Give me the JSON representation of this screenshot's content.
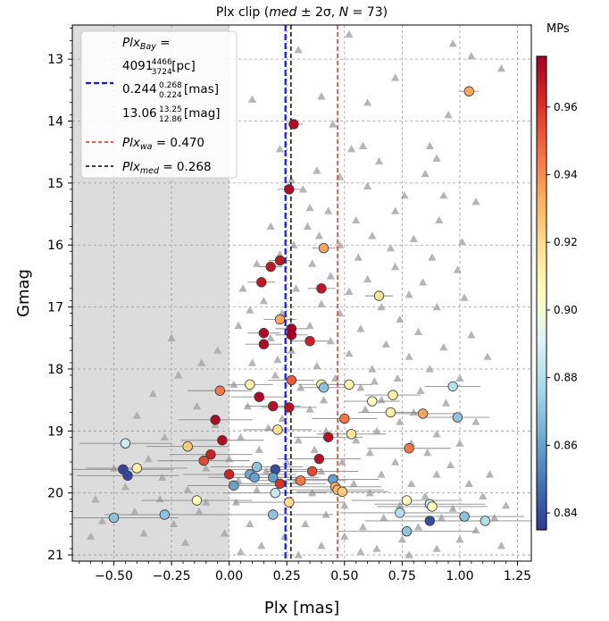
{
  "chart_data": {
    "type": "scatter",
    "title": "Plx clip (med ± 2σ, N = 73)",
    "title_parts": [
      "Plx clip (",
      "med",
      " ± 2σ, ",
      "N",
      " = 73)"
    ],
    "xlabel": "Plx [mas]",
    "ylabel": "Gmag",
    "xlim": [
      -0.68,
      1.31
    ],
    "ylim": [
      21.1,
      12.45
    ],
    "y_inverted": true,
    "xticks": [
      -0.5,
      -0.25,
      0.0,
      0.25,
      0.5,
      0.75,
      1.0,
      1.25
    ],
    "xtick_labels": [
      "−0.50",
      "−0.25",
      "0.00",
      "0.25",
      "0.50",
      "0.75",
      "1.00",
      "1.25"
    ],
    "yticks": [
      13,
      14,
      15,
      16,
      17,
      18,
      19,
      20,
      21
    ],
    "ytick_labels": [
      "13",
      "14",
      "15",
      "16",
      "17",
      "18",
      "19",
      "20",
      "21"
    ],
    "grid": true,
    "shaded_region": {
      "x_from": -0.68,
      "x_to": 0.0,
      "color": "#dcdcdc"
    },
    "vlines": [
      {
        "key": "bay",
        "x": 0.244,
        "color": "#1a1acc",
        "style": "dashed",
        "width": 2.2
      },
      {
        "key": "wa",
        "x": 0.47,
        "color": "#d62728",
        "style": "dashed",
        "width": 1.4
      },
      {
        "key": "med",
        "x": 0.268,
        "color": "#000000",
        "style": "dashed",
        "width": 1.4
      }
    ],
    "legend": {
      "placement": "top-left",
      "bay_lines": [
        {
          "pre": "",
          "it": "Plx",
          "sub": "Bay",
          "post": " ="
        },
        {
          "val": "4091",
          "sup": "4466",
          "sub": "3724",
          "unit": " [pc]"
        },
        {
          "val": "0.244",
          "sup": "0.268",
          "sub": "0.224",
          "unit": " [mas]"
        },
        {
          "val": "13.06",
          "sup": "13.25",
          "sub": "12.86",
          "unit": " [mag]"
        }
      ],
      "wa": {
        "it": "Plx",
        "sub": "wa",
        "post": " = 0.470"
      },
      "med": {
        "it": "Plx",
        "sub": "med",
        "post": " = 0.268"
      }
    },
    "colorbar": {
      "label": "MPs",
      "min": 0.835,
      "max": 0.975,
      "ticks": [
        0.84,
        0.86,
        0.88,
        0.9,
        0.92,
        0.94,
        0.96
      ],
      "tick_labels": [
        "0.84",
        "0.86",
        "0.88",
        "0.90",
        "0.92",
        "0.94",
        "0.96"
      ],
      "colormap": "RdYlBu_r"
    },
    "field_stars": [
      [
        0.3,
        12.85
      ],
      [
        0.97,
        12.75
      ],
      [
        1.05,
        12.95
      ],
      [
        1.22,
        12.4
      ],
      [
        1.18,
        13.15
      ],
      [
        0.52,
        12.6
      ],
      [
        0.72,
        13.3
      ],
      [
        0.4,
        13.6
      ],
      [
        0.1,
        13.65
      ],
      [
        0.6,
        13.7
      ],
      [
        0.95,
        13.9
      ],
      [
        0.45,
        14.05
      ],
      [
        0.22,
        14.45
      ],
      [
        0.53,
        14.45
      ],
      [
        0.58,
        14.4
      ],
      [
        0.87,
        14.4
      ],
      [
        0.9,
        14.6
      ],
      [
        0.65,
        14.65
      ],
      [
        0.38,
        14.8
      ],
      [
        0.48,
        14.9
      ],
      [
        0.85,
        14.85
      ],
      [
        0.27,
        14.95
      ],
      [
        0.6,
        15.05
      ],
      [
        0.32,
        15.1
      ],
      [
        0.76,
        15.2
      ],
      [
        0.93,
        15.2
      ],
      [
        1.07,
        15.3
      ],
      [
        0.35,
        15.4
      ],
      [
        0.43,
        15.45
      ],
      [
        0.72,
        15.45
      ],
      [
        0.55,
        15.6
      ],
      [
        0.91,
        15.6
      ],
      [
        0.18,
        15.7
      ],
      [
        0.34,
        15.7
      ],
      [
        0.39,
        15.85
      ],
      [
        0.62,
        15.85
      ],
      [
        0.8,
        15.9
      ],
      [
        1.01,
        15.95
      ],
      [
        0.28,
        16.0
      ],
      [
        0.48,
        16.0
      ],
      [
        0.7,
        16.05
      ],
      [
        0.22,
        16.15
      ],
      [
        0.56,
        16.2
      ],
      [
        0.88,
        16.2
      ],
      [
        0.12,
        16.3
      ],
      [
        0.36,
        16.3
      ],
      [
        0.72,
        16.35
      ],
      [
        0.99,
        16.4
      ],
      [
        0.44,
        16.5
      ],
      [
        0.6,
        16.55
      ],
      [
        0.84,
        16.6
      ],
      [
        0.06,
        16.7
      ],
      [
        0.29,
        16.7
      ],
      [
        0.52,
        16.75
      ],
      [
        0.78,
        16.8
      ],
      [
        1.02,
        16.85
      ],
      [
        0.15,
        16.9
      ],
      [
        0.4,
        16.95
      ],
      [
        0.66,
        17.0
      ],
      [
        0.9,
        17.0
      ],
      [
        0.23,
        17.1
      ],
      [
        0.48,
        17.1
      ],
      [
        0.74,
        17.2
      ],
      [
        0.04,
        17.3
      ],
      [
        0.35,
        17.3
      ],
      [
        0.57,
        17.35
      ],
      [
        0.82,
        17.4
      ],
      [
        1.05,
        17.45
      ],
      [
        -0.25,
        17.5
      ],
      [
        0.18,
        17.5
      ],
      [
        0.44,
        17.55
      ],
      [
        0.68,
        17.6
      ],
      [
        0.93,
        17.65
      ],
      [
        -0.05,
        17.7
      ],
      [
        0.27,
        17.7
      ],
      [
        0.52,
        17.75
      ],
      [
        0.78,
        17.8
      ],
      [
        1.12,
        17.8
      ],
      [
        -0.12,
        17.9
      ],
      [
        0.1,
        17.9
      ],
      [
        0.38,
        17.95
      ],
      [
        0.62,
        18.0
      ],
      [
        0.87,
        18.0
      ],
      [
        -0.22,
        18.1
      ],
      [
        0.2,
        18.1
      ],
      [
        0.46,
        18.15
      ],
      [
        0.73,
        18.15
      ],
      [
        1.0,
        18.15
      ],
      [
        0.02,
        18.25
      ],
      [
        0.31,
        18.3
      ],
      [
        0.57,
        18.3
      ],
      [
        0.83,
        18.35
      ],
      [
        -0.33,
        18.4
      ],
      [
        0.14,
        18.45
      ],
      [
        0.41,
        18.5
      ],
      [
        0.66,
        18.5
      ],
      [
        0.94,
        18.55
      ],
      [
        -0.14,
        18.6
      ],
      [
        0.08,
        18.6
      ],
      [
        0.35,
        18.65
      ],
      [
        0.59,
        18.65
      ],
      [
        0.8,
        18.7
      ],
      [
        -0.4,
        18.75
      ],
      [
        0.23,
        18.8
      ],
      [
        0.49,
        18.8
      ],
      [
        0.74,
        18.85
      ],
      [
        1.07,
        18.85
      ],
      [
        -0.06,
        18.9
      ],
      [
        0.17,
        18.95
      ],
      [
        0.42,
        19.0
      ],
      [
        0.64,
        19.0
      ],
      [
        0.9,
        19.05
      ],
      [
        -0.28,
        19.1
      ],
      [
        0.05,
        19.1
      ],
      [
        0.3,
        19.15
      ],
      [
        0.55,
        19.15
      ],
      [
        0.79,
        19.2
      ],
      [
        1.0,
        19.2
      ],
      [
        -0.17,
        19.25
      ],
      [
        0.13,
        19.3
      ],
      [
        0.37,
        19.3
      ],
      [
        0.61,
        19.35
      ],
      [
        0.86,
        19.35
      ],
      [
        -0.35,
        19.45
      ],
      [
        0.0,
        19.45
      ],
      [
        0.25,
        19.5
      ],
      [
        0.49,
        19.5
      ],
      [
        0.72,
        19.5
      ],
      [
        0.96,
        19.55
      ],
      [
        -0.5,
        19.6
      ],
      [
        -0.1,
        19.6
      ],
      [
        0.16,
        19.65
      ],
      [
        0.4,
        19.65
      ],
      [
        0.66,
        19.7
      ],
      [
        0.9,
        19.7
      ],
      [
        1.13,
        19.7
      ],
      [
        -0.29,
        19.75
      ],
      [
        0.04,
        19.8
      ],
      [
        0.29,
        19.8
      ],
      [
        0.54,
        19.85
      ],
      [
        0.79,
        19.85
      ],
      [
        1.04,
        19.85
      ],
      [
        -0.45,
        19.9
      ],
      [
        -0.18,
        19.95
      ],
      [
        0.12,
        19.95
      ],
      [
        0.36,
        20.0
      ],
      [
        0.61,
        20.0
      ],
      [
        0.85,
        20.05
      ],
      [
        1.1,
        20.05
      ],
      [
        -0.58,
        20.1
      ],
      [
        -0.3,
        20.1
      ],
      [
        0.03,
        20.15
      ],
      [
        0.26,
        20.15
      ],
      [
        0.5,
        20.2
      ],
      [
        0.74,
        20.2
      ],
      [
        0.97,
        20.25
      ],
      [
        1.2,
        20.2
      ],
      [
        -0.41,
        20.3
      ],
      [
        -0.13,
        20.3
      ],
      [
        0.19,
        20.35
      ],
      [
        0.42,
        20.35
      ],
      [
        0.67,
        20.4
      ],
      [
        0.92,
        20.4
      ],
      [
        1.15,
        20.4
      ],
      [
        -0.55,
        20.45
      ],
      [
        -0.24,
        20.5
      ],
      [
        0.09,
        20.5
      ],
      [
        0.33,
        20.5
      ],
      [
        0.58,
        20.55
      ],
      [
        0.82,
        20.55
      ],
      [
        1.07,
        20.6
      ],
      [
        -0.37,
        20.65
      ],
      [
        -0.02,
        20.65
      ],
      [
        0.24,
        20.7
      ],
      [
        0.5,
        20.7
      ],
      [
        0.75,
        20.75
      ],
      [
        1.0,
        20.75
      ],
      [
        -0.6,
        20.7
      ],
      [
        -0.19,
        20.8
      ],
      [
        0.14,
        20.85
      ],
      [
        0.4,
        20.85
      ],
      [
        0.64,
        20.9
      ],
      [
        0.9,
        20.9
      ],
      [
        1.18,
        20.85
      ],
      [
        0.57,
        20.95
      ],
      [
        0.3,
        21.0
      ],
      [
        0.78,
        21.0
      ],
      [
        0.05,
        20.95
      ],
      [
        -0.1,
        20.15
      ],
      [
        0.47,
        19.95
      ],
      [
        0.63,
        18.2
      ],
      [
        0.21,
        17.85
      ],
      [
        0.09,
        17.05
      ]
    ],
    "members": [
      {
        "x": 1.04,
        "y": 13.52,
        "mp": 0.935,
        "err": 0.04
      },
      {
        "x": 0.28,
        "y": 14.05,
        "mp": 0.972,
        "err": 0.04
      },
      {
        "x": 0.26,
        "y": 15.1,
        "mp": 0.972,
        "err": 0.05
      },
      {
        "x": 0.41,
        "y": 16.05,
        "mp": 0.935,
        "err": 0.05
      },
      {
        "x": 0.22,
        "y": 16.25,
        "mp": 0.968,
        "err": 0.05
      },
      {
        "x": 0.18,
        "y": 16.35,
        "mp": 0.968,
        "err": 0.05
      },
      {
        "x": 0.14,
        "y": 16.6,
        "mp": 0.968,
        "err": 0.06
      },
      {
        "x": 0.4,
        "y": 16.7,
        "mp": 0.968,
        "err": 0.06
      },
      {
        "x": 0.65,
        "y": 16.82,
        "mp": 0.918,
        "err": 0.06
      },
      {
        "x": 0.22,
        "y": 17.2,
        "mp": 0.935,
        "err": 0.07
      },
      {
        "x": 0.27,
        "y": 17.35,
        "mp": 0.975,
        "err": 0.07
      },
      {
        "x": 0.15,
        "y": 17.42,
        "mp": 0.972,
        "err": 0.07
      },
      {
        "x": 0.27,
        "y": 17.45,
        "mp": 0.975,
        "err": 0.07
      },
      {
        "x": 0.35,
        "y": 17.55,
        "mp": 0.965,
        "err": 0.08
      },
      {
        "x": 0.15,
        "y": 17.6,
        "mp": 0.972,
        "err": 0.08
      },
      {
        "x": 0.27,
        "y": 18.18,
        "mp": 0.952,
        "err": 0.1
      },
      {
        "x": 0.09,
        "y": 18.25,
        "mp": 0.91,
        "err": 0.1
      },
      {
        "x": 0.4,
        "y": 18.25,
        "mp": 0.905,
        "err": 0.1
      },
      {
        "x": 0.41,
        "y": 18.3,
        "mp": 0.87,
        "err": 0.1
      },
      {
        "x": 0.52,
        "y": 18.25,
        "mp": 0.91,
        "err": 0.1
      },
      {
        "x": 0.97,
        "y": 18.28,
        "mp": 0.88,
        "err": 0.12
      },
      {
        "x": -0.04,
        "y": 18.35,
        "mp": 0.945,
        "err": 0.14
      },
      {
        "x": 0.71,
        "y": 18.42,
        "mp": 0.912,
        "err": 0.12
      },
      {
        "x": 0.13,
        "y": 18.45,
        "mp": 0.972,
        "err": 0.12
      },
      {
        "x": 0.62,
        "y": 18.52,
        "mp": 0.905,
        "err": 0.12
      },
      {
        "x": 0.26,
        "y": 18.62,
        "mp": 0.97,
        "err": 0.12
      },
      {
        "x": 0.19,
        "y": 18.6,
        "mp": 0.97,
        "err": 0.12
      },
      {
        "x": 0.7,
        "y": 18.7,
        "mp": 0.912,
        "err": 0.14
      },
      {
        "x": 0.84,
        "y": 18.72,
        "mp": 0.935,
        "err": 0.14
      },
      {
        "x": 0.99,
        "y": 18.78,
        "mp": 0.87,
        "err": 0.14
      },
      {
        "x": 0.5,
        "y": 18.8,
        "mp": 0.945,
        "err": 0.14
      },
      {
        "x": -0.06,
        "y": 18.82,
        "mp": 0.972,
        "err": 0.16
      },
      {
        "x": 0.21,
        "y": 18.98,
        "mp": 0.918,
        "err": 0.15
      },
      {
        "x": 0.53,
        "y": 19.05,
        "mp": 0.915,
        "err": 0.15
      },
      {
        "x": 0.43,
        "y": 19.1,
        "mp": 0.97,
        "err": 0.15
      },
      {
        "x": -0.03,
        "y": 19.15,
        "mp": 0.972,
        "err": 0.18
      },
      {
        "x": -0.45,
        "y": 19.2,
        "mp": 0.885,
        "err": 0.2
      },
      {
        "x": -0.18,
        "y": 19.25,
        "mp": 0.925,
        "err": 0.18
      },
      {
        "x": 0.78,
        "y": 19.28,
        "mp": 0.945,
        "err": 0.18
      },
      {
        "x": -0.08,
        "y": 19.38,
        "mp": 0.965,
        "err": 0.18
      },
      {
        "x": 0.39,
        "y": 19.45,
        "mp": 0.97,
        "err": 0.18
      },
      {
        "x": -0.11,
        "y": 19.48,
        "mp": 0.955,
        "err": 0.2
      },
      {
        "x": 0.12,
        "y": 19.58,
        "mp": 0.87,
        "err": 0.2
      },
      {
        "x": -0.4,
        "y": 19.6,
        "mp": 0.912,
        "err": 0.22
      },
      {
        "x": -0.46,
        "y": 19.62,
        "mp": 0.838,
        "err": 0.22
      },
      {
        "x": 0.2,
        "y": 19.62,
        "mp": 0.84,
        "err": 0.2
      },
      {
        "x": 0.36,
        "y": 19.65,
        "mp": 0.955,
        "err": 0.2
      },
      {
        "x": 0.0,
        "y": 19.7,
        "mp": 0.965,
        "err": 0.2
      },
      {
        "x": 0.09,
        "y": 19.7,
        "mp": 0.862,
        "err": 0.2
      },
      {
        "x": 0.11,
        "y": 19.75,
        "mp": 0.86,
        "err": 0.2
      },
      {
        "x": -0.44,
        "y": 19.72,
        "mp": 0.838,
        "err": 0.22
      },
      {
        "x": 0.19,
        "y": 19.75,
        "mp": 0.86,
        "err": 0.2
      },
      {
        "x": 0.31,
        "y": 19.8,
        "mp": 0.945,
        "err": 0.2
      },
      {
        "x": 0.45,
        "y": 19.78,
        "mp": 0.86,
        "err": 0.2
      },
      {
        "x": 0.22,
        "y": 19.85,
        "mp": 0.96,
        "err": 0.2
      },
      {
        "x": 0.46,
        "y": 19.9,
        "mp": 0.935,
        "err": 0.2
      },
      {
        "x": 0.02,
        "y": 19.88,
        "mp": 0.86,
        "err": 0.2
      },
      {
        "x": 0.47,
        "y": 19.95,
        "mp": 0.93,
        "err": 0.2
      },
      {
        "x": 0.49,
        "y": 19.98,
        "mp": 0.925,
        "err": 0.2
      },
      {
        "x": 0.2,
        "y": 20.0,
        "mp": 0.885,
        "err": 0.22
      },
      {
        "x": -0.14,
        "y": 20.12,
        "mp": 0.905,
        "err": 0.24
      },
      {
        "x": 0.77,
        "y": 20.12,
        "mp": 0.905,
        "err": 0.24
      },
      {
        "x": 0.87,
        "y": 20.18,
        "mp": 0.885,
        "err": 0.24
      },
      {
        "x": 0.88,
        "y": 20.22,
        "mp": 0.905,
        "err": 0.24
      },
      {
        "x": 0.26,
        "y": 20.15,
        "mp": 0.92,
        "err": 0.24
      },
      {
        "x": 0.74,
        "y": 20.32,
        "mp": 0.88,
        "err": 0.26
      },
      {
        "x": -0.28,
        "y": 20.35,
        "mp": 0.87,
        "err": 0.26
      },
      {
        "x": 0.19,
        "y": 20.35,
        "mp": 0.87,
        "err": 0.26
      },
      {
        "x": 1.02,
        "y": 20.38,
        "mp": 0.87,
        "err": 0.26
      },
      {
        "x": -0.5,
        "y": 20.4,
        "mp": 0.87,
        "err": 0.28
      },
      {
        "x": 0.87,
        "y": 20.45,
        "mp": 0.84,
        "err": 0.28
      },
      {
        "x": 1.11,
        "y": 20.45,
        "mp": 0.88,
        "err": 0.28
      },
      {
        "x": 0.77,
        "y": 20.62,
        "mp": 0.87,
        "err": 0.3
      }
    ]
  }
}
